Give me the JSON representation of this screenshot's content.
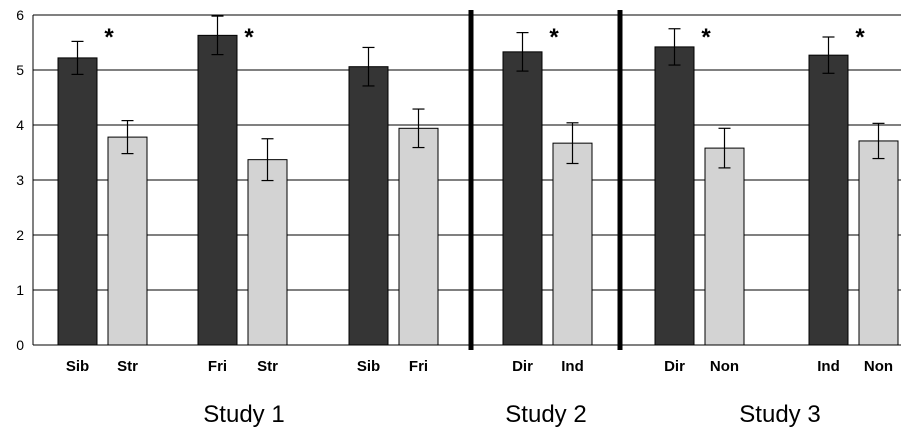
{
  "chart_data": {
    "type": "bar",
    "ylim": [
      0,
      6
    ],
    "yticks": [
      0,
      1,
      2,
      3,
      4,
      5,
      6
    ],
    "grid": true,
    "colors": {
      "dark": "#353535",
      "light": "#d3d3d3",
      "grid": "#000000"
    },
    "groups": [
      {
        "study": "Study 1",
        "pairs": [
          {
            "bars": [
              {
                "label": "Sib",
                "value": 5.22,
                "error": 0.3,
                "shade": "dark",
                "star": "*"
              },
              {
                "label": "Str",
                "value": 3.78,
                "error": 0.3,
                "shade": "light",
                "star": ""
              }
            ]
          },
          {
            "bars": [
              {
                "label": "Fri",
                "value": 5.63,
                "error": 0.35,
                "shade": "dark",
                "star": "*"
              },
              {
                "label": "Str",
                "value": 3.37,
                "error": 0.38,
                "shade": "light",
                "star": ""
              }
            ]
          },
          {
            "bars": [
              {
                "label": "Sib",
                "value": 5.06,
                "error": 0.35,
                "shade": "dark",
                "star": ""
              },
              {
                "label": "Fri",
                "value": 3.94,
                "error": 0.35,
                "shade": "light",
                "star": ""
              }
            ]
          }
        ]
      },
      {
        "study": "Study 2",
        "pairs": [
          {
            "bars": [
              {
                "label": "Dir",
                "value": 5.33,
                "error": 0.35,
                "shade": "dark",
                "star": "*"
              },
              {
                "label": "Ind",
                "value": 3.67,
                "error": 0.37,
                "shade": "light",
                "star": ""
              }
            ]
          }
        ]
      },
      {
        "study": "Study 3",
        "pairs": [
          {
            "bars": [
              {
                "label": "Dir",
                "value": 5.42,
                "error": 0.33,
                "shade": "dark",
                "star": "*"
              },
              {
                "label": "Non",
                "value": 3.58,
                "error": 0.36,
                "shade": "light",
                "star": ""
              }
            ]
          },
          {
            "bars": [
              {
                "label": "Ind",
                "value": 5.27,
                "error": 0.33,
                "shade": "dark",
                "star": "*"
              },
              {
                "label": "Non",
                "value": 3.71,
                "error": 0.32,
                "shade": "light",
                "star": ""
              }
            ]
          }
        ]
      }
    ]
  }
}
